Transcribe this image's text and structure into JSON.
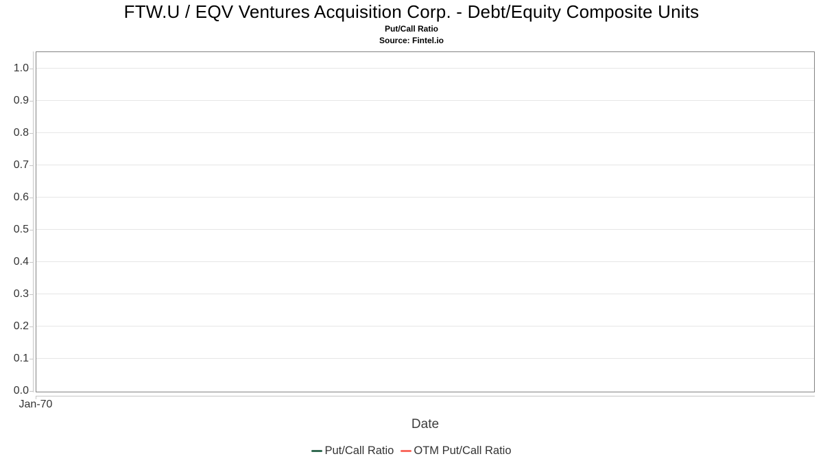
{
  "chart_data": {
    "type": "line",
    "title": "FTW.U / EQV Ventures Acquisition Corp. - Debt/Equity Composite Units",
    "subtitle": "Put/Call Ratio",
    "source": "Source: Fintel.io",
    "xlabel": "Date",
    "ylabel": "",
    "x_tick_labels": [
      "Jan-70"
    ],
    "y_tick_labels": [
      "0.0",
      "0.1",
      "0.2",
      "0.3",
      "0.4",
      "0.5",
      "0.6",
      "0.7",
      "0.8",
      "0.9",
      "1.0"
    ],
    "ylim": [
      0.0,
      1.05
    ],
    "grid": "horizontal",
    "legend_position": "bottom-center",
    "plot_empty": true,
    "series": [
      {
        "name": "Put/Call Ratio",
        "color": "#336a52",
        "x": [],
        "values": []
      },
      {
        "name": "OTM Put/Call Ratio",
        "color": "#f96a5f",
        "x": [],
        "values": []
      }
    ]
  },
  "colors": {
    "background": "#ffffff",
    "plot_border": "#818181",
    "gridline": "#e6e6e6",
    "axis_line": "#c6c6c6",
    "tick_text": "#333333",
    "axis_title_text": "#3d3d3d",
    "title_text": "#000000",
    "legend_text": "#333333"
  }
}
